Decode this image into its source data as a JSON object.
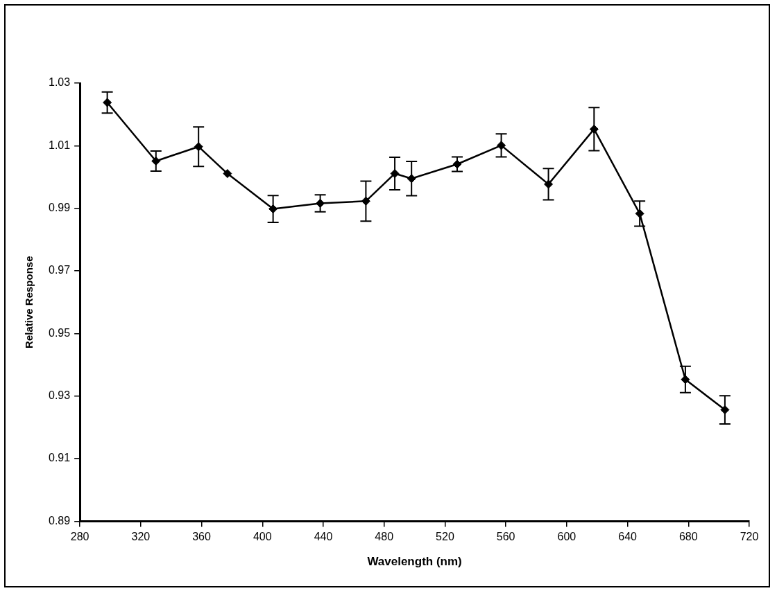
{
  "chart_data": {
    "type": "line",
    "xlabel": "Wavelength (nm)",
    "ylabel": "Relative Response",
    "x": [
      298,
      330,
      358,
      377,
      407,
      438,
      468,
      487,
      498,
      528,
      557,
      588,
      618,
      648,
      678,
      704
    ],
    "series": [
      {
        "color": "#000000",
        "values": [
          1.0238,
          1.0051,
          1.0097,
          1.0011,
          0.9898,
          0.9916,
          0.9923,
          1.0011,
          0.9995,
          1.0041,
          1.0101,
          0.9977,
          1.0153,
          0.9883,
          0.9353,
          0.9256
        ],
        "errors": [
          0.0034,
          0.0032,
          0.0063,
          null,
          0.0043,
          0.0027,
          0.0064,
          0.0052,
          0.0055,
          0.0023,
          0.0037,
          0.005,
          0.0069,
          0.004,
          0.0042,
          0.0045
        ]
      }
    ],
    "xlim": [
      280,
      720
    ],
    "xticks": [
      280,
      320,
      360,
      400,
      440,
      480,
      520,
      560,
      600,
      640,
      680,
      720
    ],
    "ylim": [
      0.89,
      1.03
    ],
    "yticks": [
      {
        "value": 0.89,
        "label": "0.89"
      },
      {
        "value": 0.91,
        "label": "0.91"
      },
      {
        "value": 0.93,
        "label": "0.93"
      },
      {
        "value": 0.95,
        "label": "0.95"
      },
      {
        "value": 0.97,
        "label": "0.97"
      },
      {
        "value": 0.99,
        "label": "0.99"
      },
      {
        "value": 1.01,
        "label": "1.01"
      },
      {
        "value": 1.03,
        "label": "1.03"
      }
    ],
    "grid": false,
    "legend": false,
    "marker": "diamond",
    "line_style": "solid"
  }
}
